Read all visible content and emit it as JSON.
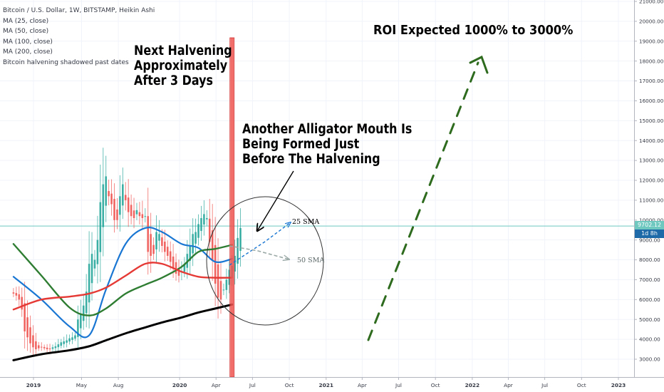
{
  "legend": {
    "symbol": "Bitcoin / U.S. Dollar, 1W, BITSTAMP, Heikin Ashi",
    "ma_lines": [
      "MA (25, close)",
      "MA (50, close)",
      "MA (100, close)",
      "MA (200, close)"
    ],
    "overlay": "Bitcoin halvening shadowed past dates"
  },
  "annotations": {
    "halvening_lines": [
      "Next Halvening",
      "Approximately",
      "After 3 Days"
    ],
    "alligator_lines": [
      "Another Alligator Mouth Is",
      "Being Formed Just",
      "Before The Halvening"
    ],
    "roi": "ROI Expected 1000% to 3000%",
    "sma25": "25 SMA",
    "sma50": "50 SMA"
  },
  "price_tags": {
    "last_price": "9702.12",
    "countdown": "1d 8h"
  },
  "colors": {
    "candle_up": "#26a69a",
    "candle_down": "#ef5350",
    "ma25": "#1976d2",
    "ma50": "#2e7d32",
    "ma100": "#e53935",
    "ma200": "#000000",
    "halvening": "#ef5350",
    "roi_arrow": "#2e6b1e",
    "price_line": "#6ec8c0",
    "countdown_tag": "#1e6aa8"
  },
  "chart_data": {
    "type": "candlestick",
    "y_ticks": [
      "21000.00",
      "20000.00",
      "19000.00",
      "18000.00",
      "17000.00",
      "16000.00",
      "15000.00",
      "14000.00",
      "13000.00",
      "12000.00",
      "11000.00",
      "10000.00",
      "9000.00",
      "8000.00",
      "7000.00",
      "6000.00",
      "5000.00",
      "4000.00",
      "3000.00"
    ],
    "ylim": [
      2300,
      21200
    ],
    "x_ticks": [
      {
        "label": "2019",
        "date": "2019-01-01"
      },
      {
        "label": "May",
        "date": "2019-05-01"
      },
      {
        "label": "Aug",
        "date": "2019-08-01"
      },
      {
        "label": "2020",
        "date": "2020-01-01"
      },
      {
        "label": "Apr",
        "date": "2020-04-01"
      },
      {
        "label": "Jul",
        "date": "2020-07-01"
      },
      {
        "label": "Oct",
        "date": "2020-10-01"
      },
      {
        "label": "2021",
        "date": "2021-01-01"
      },
      {
        "label": "Apr",
        "date": "2021-04-01"
      },
      {
        "label": "Jul",
        "date": "2021-07-01"
      },
      {
        "label": "Oct",
        "date": "2021-10-01"
      },
      {
        "label": "2022",
        "date": "2022-01-01"
      },
      {
        "label": "Apr",
        "date": "2022-04-01"
      },
      {
        "label": "Jul",
        "date": "2022-07-01"
      },
      {
        "label": "Oct",
        "date": "2022-10-01"
      },
      {
        "label": "2023",
        "date": "2023-01-01"
      }
    ],
    "halvening_date": "2020-05-11",
    "last_price": 9702.12,
    "candles_start": "2018-11-12",
    "candles_close": [
      6300,
      6200,
      6000,
      5500,
      4400,
      4100,
      3800,
      3600,
      3500,
      3550,
      3600,
      3550,
      3500,
      3500,
      3600,
      3650,
      3750,
      3850,
      3900,
      3950,
      4050,
      4100,
      4200,
      5000,
      5300,
      5700,
      6400,
      7800,
      8300,
      8000,
      9000,
      10900,
      11800,
      12200,
      11200,
      10800,
      10000,
      10000,
      11200,
      11800,
      11000,
      10400,
      10200,
      10100,
      10500,
      10200,
      10100,
      10200,
      8400,
      8200,
      8300,
      9400,
      9300,
      8700,
      8400,
      8200,
      7900,
      7600,
      7300,
      7200,
      7400,
      7800,
      8300,
      8700,
      9300,
      9400,
      9800,
      10100,
      10300,
      10100,
      8900,
      8000,
      6800,
      6100,
      6000,
      6500,
      7000,
      7500,
      7700,
      8200,
      9100,
      9600
    ],
    "series": [
      {
        "name": "MA (25, close)",
        "x": [
          "2018-11-12",
          "2019-01-21",
          "2019-04-01",
          "2019-05-20",
          "2019-07-01",
          "2019-08-19",
          "2019-10-07",
          "2019-11-18",
          "2020-01-06",
          "2020-02-17",
          "2020-03-30",
          "2020-05-11"
        ],
        "y": [
          7150,
          6000,
          4650,
          4200,
          6500,
          8800,
          9600,
          9400,
          8800,
          8600,
          7900,
          8050
        ]
      },
      {
        "name": "MA (50, close)",
        "x": [
          "2018-11-12",
          "2019-01-21",
          "2019-04-01",
          "2019-05-20",
          "2019-07-01",
          "2019-08-19",
          "2019-10-07",
          "2019-11-18",
          "2020-01-06",
          "2020-02-17",
          "2020-03-30",
          "2020-05-11"
        ],
        "y": [
          8800,
          7200,
          5600,
          5200,
          5550,
          6300,
          6750,
          7100,
          7650,
          8400,
          8550,
          8750
        ]
      },
      {
        "name": "MA (100, close)",
        "x": [
          "2018-11-12",
          "2019-01-21",
          "2019-04-01",
          "2019-05-20",
          "2019-07-01",
          "2019-08-19",
          "2019-10-07",
          "2019-11-18",
          "2020-01-06",
          "2020-02-17",
          "2020-03-30",
          "2020-05-11"
        ],
        "y": [
          5500,
          6000,
          6150,
          6300,
          6600,
          7200,
          7800,
          7800,
          7400,
          7150,
          7100,
          7100
        ]
      },
      {
        "name": "MA (200, close)",
        "x": [
          "2018-11-12",
          "2019-01-21",
          "2019-04-01",
          "2019-05-20",
          "2019-07-01",
          "2019-08-19",
          "2019-10-07",
          "2019-11-18",
          "2020-01-06",
          "2020-02-17",
          "2020-03-30",
          "2020-05-11"
        ],
        "y": [
          2950,
          3250,
          3450,
          3650,
          3950,
          4300,
          4600,
          4850,
          5100,
          5350,
          5550,
          5750
        ]
      }
    ]
  }
}
